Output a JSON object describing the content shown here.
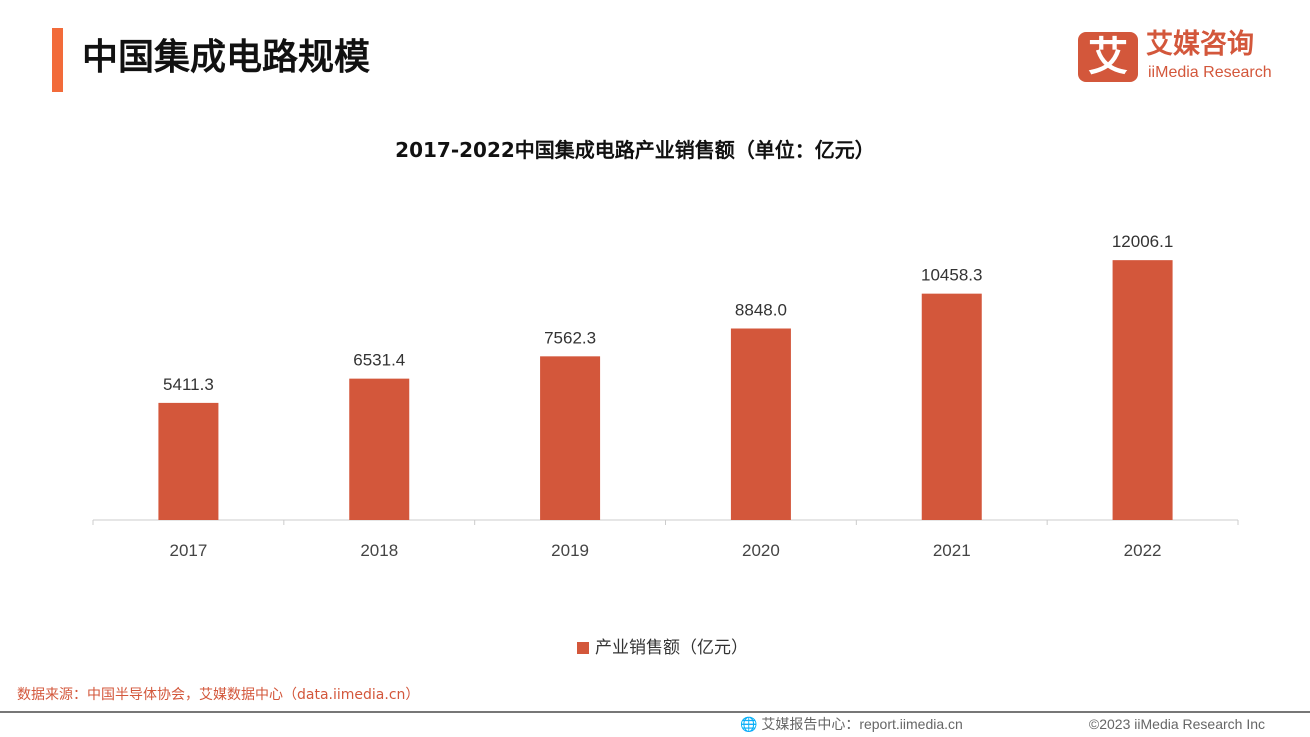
{
  "header": {
    "title": "中国集成电路规模",
    "logo_mark": "艾",
    "logo_cn": "艾媒咨询",
    "logo_en": "iiMedia Research"
  },
  "chart_data": {
    "type": "bar",
    "title": "2017-2022中国集成电路产业销售额（单位：亿元）",
    "categories": [
      "2017",
      "2018",
      "2019",
      "2020",
      "2021",
      "2022"
    ],
    "series": [
      {
        "name": "产业销售额（亿元）",
        "values": [
          5411.3,
          6531.4,
          7562.3,
          8848.0,
          10458.3,
          12006.1
        ],
        "labels": [
          "5411.3",
          "6531.4",
          "7562.3",
          "8848.0",
          "10458.3",
          "12006.1"
        ]
      }
    ],
    "ylim": [
      0,
      14000
    ],
    "grid": false,
    "legend": "bottom",
    "color": "#d3573b"
  },
  "footer": {
    "source": "数据来源：中国半导体协会，艾媒数据中心（data.iimedia.cn）",
    "report": "艾媒报告中心：report.iimedia.cn",
    "copyright": "©2023  iiMedia Research  Inc"
  }
}
